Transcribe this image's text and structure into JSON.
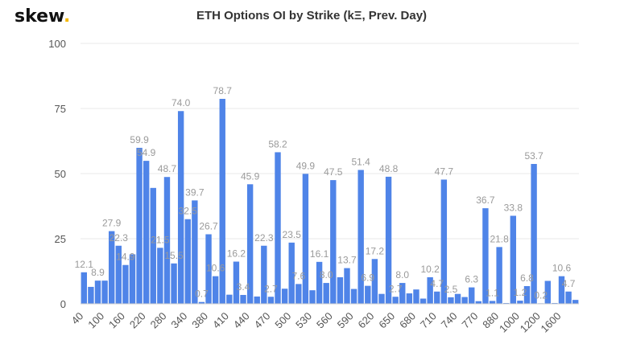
{
  "brand": {
    "logo_text": "skew",
    "logo_dot": ".",
    "dot_color": "#f5b800"
  },
  "chart_data": {
    "type": "bar",
    "title": "ETH Options OI by Strike (kΞ, Prev. Day)",
    "xlabel": "",
    "ylabel": "",
    "ylim": [
      0,
      100
    ],
    "yticks": [
      0,
      25,
      50,
      75,
      100
    ],
    "grid": true,
    "legend": "none",
    "bar_color": "#4f84e8",
    "x_tick_labels": [
      "40",
      "100",
      "160",
      "220",
      "280",
      "340",
      "380",
      "410",
      "440",
      "470",
      "500",
      "530",
      "560",
      "590",
      "620",
      "650",
      "680",
      "710",
      "740",
      "770",
      "880",
      "1000",
      "1200",
      "1600"
    ],
    "x_tick_every": 3,
    "values": [
      12.1,
      6.5,
      8.9,
      8.9,
      27.9,
      22.3,
      14.9,
      19.0,
      59.9,
      54.9,
      44.5,
      21.5,
      48.7,
      15.5,
      74.0,
      32.5,
      39.7,
      0.7,
      26.7,
      10.6,
      78.7,
      3.5,
      16.2,
      3.4,
      45.9,
      2.8,
      22.3,
      2.7,
      58.2,
      5.8,
      23.5,
      7.6,
      49.9,
      5.2,
      16.1,
      8.0,
      47.5,
      10.2,
      13.7,
      5.7,
      51.4,
      6.9,
      17.2,
      3.8,
      48.8,
      2.7,
      8.0,
      4.0,
      5.5,
      2.0,
      10.2,
      4.7,
      47.7,
      2.5,
      3.8,
      2.6,
      6.3,
      1.0,
      36.7,
      1.1,
      21.8,
      0.3,
      33.8,
      1.2,
      6.8,
      53.7,
      0.2,
      8.8,
      0.3,
      10.6,
      4.7,
      1.5
    ],
    "data_labels": [
      {
        "index": 0,
        "text": "12.1"
      },
      {
        "index": 2,
        "text": "8.9"
      },
      {
        "index": 4,
        "text": "27.9"
      },
      {
        "index": 5,
        "text": "22.3"
      },
      {
        "index": 6,
        "text": "14.9"
      },
      {
        "index": 8,
        "text": "59.9"
      },
      {
        "index": 9,
        "text": "54.9"
      },
      {
        "index": 11,
        "text": "21.5"
      },
      {
        "index": 12,
        "text": "48.7"
      },
      {
        "index": 13,
        "text": "15.5"
      },
      {
        "index": 14,
        "text": "74.0"
      },
      {
        "index": 15,
        "text": "32.5"
      },
      {
        "index": 16,
        "text": "39.7"
      },
      {
        "index": 17,
        "text": "0.7"
      },
      {
        "index": 18,
        "text": "26.7"
      },
      {
        "index": 19,
        "text": "10.6"
      },
      {
        "index": 20,
        "text": "78.7"
      },
      {
        "index": 22,
        "text": "16.2"
      },
      {
        "index": 23,
        "text": "3.4"
      },
      {
        "index": 24,
        "text": "45.9"
      },
      {
        "index": 26,
        "text": "22.3"
      },
      {
        "index": 27,
        "text": "2.7"
      },
      {
        "index": 28,
        "text": "58.2"
      },
      {
        "index": 30,
        "text": "23.5"
      },
      {
        "index": 31,
        "text": "7.6"
      },
      {
        "index": 32,
        "text": "49.9"
      },
      {
        "index": 34,
        "text": "16.1"
      },
      {
        "index": 35,
        "text": "8.0"
      },
      {
        "index": 36,
        "text": "47.5"
      },
      {
        "index": 38,
        "text": "13.7"
      },
      {
        "index": 40,
        "text": "51.4"
      },
      {
        "index": 41,
        "text": "6.9"
      },
      {
        "index": 42,
        "text": "17.2"
      },
      {
        "index": 44,
        "text": "48.8"
      },
      {
        "index": 45,
        "text": "2.7"
      },
      {
        "index": 46,
        "text": "8.0"
      },
      {
        "index": 50,
        "text": "10.2"
      },
      {
        "index": 51,
        "text": "4.7"
      },
      {
        "index": 52,
        "text": "47.7"
      },
      {
        "index": 53,
        "text": "2.5"
      },
      {
        "index": 56,
        "text": "6.3"
      },
      {
        "index": 58,
        "text": "36.7"
      },
      {
        "index": 59,
        "text": "1.1"
      },
      {
        "index": 60,
        "text": "21.8"
      },
      {
        "index": 62,
        "text": "33.8"
      },
      {
        "index": 63,
        "text": "1.2"
      },
      {
        "index": 64,
        "text": "6.8"
      },
      {
        "index": 65,
        "text": "53.7"
      },
      {
        "index": 66,
        "text": "0.2"
      },
      {
        "index": 69,
        "text": "10.6"
      },
      {
        "index": 70,
        "text": "4.7"
      }
    ]
  }
}
